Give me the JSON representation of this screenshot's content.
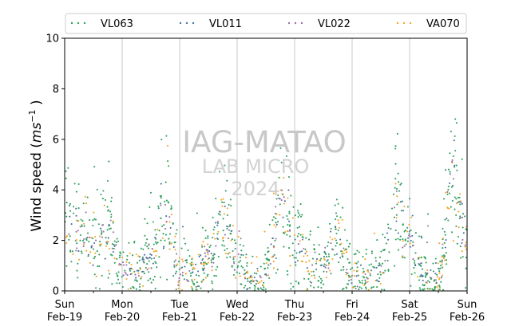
{
  "chart_data": {
    "type": "scatter",
    "title": "",
    "ylabel_main": "Wind speed (",
    "ylabel_unit_base": "ms",
    "ylabel_unit_exp": "−1",
    "ylabel_close": " )",
    "ylim": [
      0,
      10
    ],
    "yticks": [
      0,
      2,
      4,
      6,
      8,
      10
    ],
    "xlim": [
      "2024-02-19",
      "2024-02-26"
    ],
    "grid": "vertical at day boundaries",
    "legend_position": "top",
    "xtick_labels": [
      {
        "day": "Sun",
        "date": "Feb-19"
      },
      {
        "day": "Mon",
        "date": "Feb-20"
      },
      {
        "day": "Tue",
        "date": "Feb-21"
      },
      {
        "day": "Wed",
        "date": "Feb-22"
      },
      {
        "day": "Thu",
        "date": "Feb-23"
      },
      {
        "day": "Fri",
        "date": "Feb-24"
      },
      {
        "day": "Sat",
        "date": "Feb-25"
      },
      {
        "day": "Sun",
        "date": "Feb-26"
      }
    ],
    "watermark": {
      "line1": "IAG-MATAO",
      "line2": "LAB MICRO",
      "line3": "2024"
    },
    "series": [
      {
        "name": "VL063",
        "color": "#2ca05a"
      },
      {
        "name": "VL011",
        "color": "#4a6fa8"
      },
      {
        "name": "VL022",
        "color": "#9b6fa8"
      },
      {
        "name": "VA070",
        "color": "#f5a623"
      }
    ],
    "typical_wind_by_time": [
      {
        "x": "2024-02-19 00:00",
        "y": 3.0
      },
      {
        "x": "2024-02-19 06:00",
        "y": 2.2
      },
      {
        "x": "2024-02-19 12:00",
        "y": 1.8
      },
      {
        "x": "2024-02-19 18:00",
        "y": 2.5
      },
      {
        "x": "2024-02-20 00:00",
        "y": 1.0
      },
      {
        "x": "2024-02-20 06:00",
        "y": 0.7
      },
      {
        "x": "2024-02-20 12:00",
        "y": 1.5
      },
      {
        "x": "2024-02-20 18:00",
        "y": 3.2
      },
      {
        "x": "2024-02-21 00:00",
        "y": 0.8
      },
      {
        "x": "2024-02-21 06:00",
        "y": 0.8
      },
      {
        "x": "2024-02-21 12:00",
        "y": 1.3
      },
      {
        "x": "2024-02-21 18:00",
        "y": 3.0
      },
      {
        "x": "2024-02-22 00:00",
        "y": 1.2
      },
      {
        "x": "2024-02-22 06:00",
        "y": 0.4
      },
      {
        "x": "2024-02-22 12:00",
        "y": 0.6
      },
      {
        "x": "2024-02-22 18:00",
        "y": 3.5
      },
      {
        "x": "2024-02-23 00:00",
        "y": 2.0
      },
      {
        "x": "2024-02-23 06:00",
        "y": 1.2
      },
      {
        "x": "2024-02-23 12:00",
        "y": 1.0
      },
      {
        "x": "2024-02-23 18:00",
        "y": 2.0
      },
      {
        "x": "2024-02-24 00:00",
        "y": 0.5
      },
      {
        "x": "2024-02-24 06:00",
        "y": 0.5
      },
      {
        "x": "2024-02-24 12:00",
        "y": 0.7
      },
      {
        "x": "2024-02-24 18:00",
        "y": 3.2
      },
      {
        "x": "2024-02-25 00:00",
        "y": 2.0
      },
      {
        "x": "2024-02-25 06:00",
        "y": 0.6
      },
      {
        "x": "2024-02-25 12:00",
        "y": 0.5
      },
      {
        "x": "2024-02-25 18:00",
        "y": 4.5
      },
      {
        "x": "2024-02-26 00:00",
        "y": 1.8
      }
    ]
  }
}
